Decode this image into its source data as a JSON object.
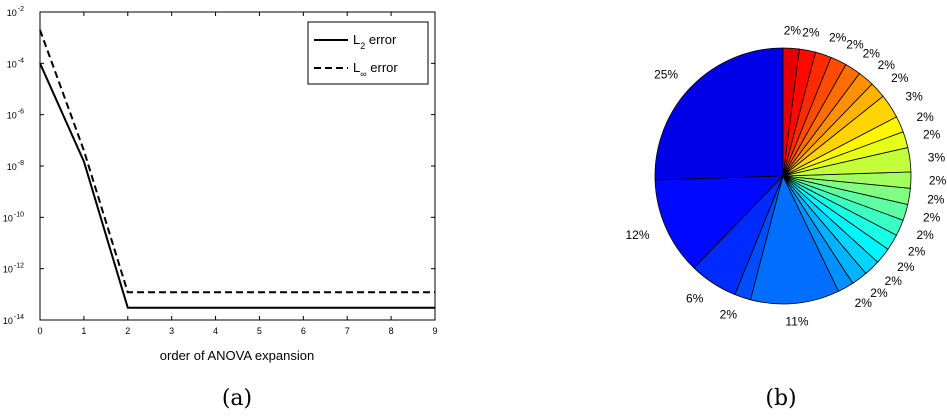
{
  "chart_data": [
    {
      "type": "line",
      "xlabel": "order of ANOVA expansion",
      "ylabel": "",
      "xlim": [
        0,
        9
      ],
      "ylim": [
        1e-14,
        0.01
      ],
      "yscale": "log",
      "x": [
        0,
        1,
        2,
        3,
        4,
        5,
        6,
        7,
        8,
        9
      ],
      "xticks": [
        0,
        1,
        2,
        3,
        4,
        5,
        6,
        7,
        8,
        9
      ],
      "yticks": [
        {
          "base": "10",
          "exp": "-14",
          "value": 1e-14
        },
        {
          "base": "10",
          "exp": "-12",
          "value": 1e-12
        },
        {
          "base": "10",
          "exp": "-10",
          "value": 1e-10
        },
        {
          "base": "10",
          "exp": "-8",
          "value": 1e-08
        },
        {
          "base": "10",
          "exp": "-6",
          "value": 1e-06
        },
        {
          "base": "10",
          "exp": "-4",
          "value": 0.0001
        },
        {
          "base": "10",
          "exp": "-2",
          "value": 0.01
        }
      ],
      "series": [
        {
          "key": "l2",
          "label_main": "L",
          "label_sub": "2",
          "label_tail": " error",
          "style": "solid",
          "values": [
            0.0001,
            1.5e-08,
            3e-14,
            3e-14,
            3e-14,
            3e-14,
            3e-14,
            3e-14,
            3e-14,
            3e-14
          ]
        },
        {
          "key": "linf",
          "label_main": "L",
          "label_sub": "∞",
          "label_tail": " error",
          "style": "dashed",
          "values": [
            0.002,
            4e-08,
            1.2e-13,
            1.2e-13,
            1.2e-13,
            1.2e-13,
            1.2e-13,
            1.2e-13,
            1.2e-13,
            1.2e-13
          ]
        }
      ],
      "legend_position": "top-right",
      "grid": false
    },
    {
      "type": "pie",
      "direction": "counterclockwise",
      "start": "top",
      "values": [
        25,
        12,
        6,
        2,
        11,
        2,
        2,
        2,
        2,
        2,
        2,
        2,
        2,
        2,
        3,
        2,
        2,
        3,
        2,
        2,
        2,
        2,
        2,
        2,
        2
      ],
      "labels": [
        "25%",
        "12%",
        "6%",
        "2%",
        "11%",
        "2%",
        "2%",
        "2%",
        "2%",
        "2%",
        "2%",
        "2%",
        "2%",
        "2%",
        "3%",
        "2%",
        "2%",
        "3%",
        "2%",
        "2%",
        "2%",
        "2%",
        "2%",
        "2%",
        "2%"
      ],
      "colormap": "jet",
      "edge_color": "#000000"
    }
  ],
  "captions": {
    "a": "(a)",
    "b": "(b)"
  }
}
